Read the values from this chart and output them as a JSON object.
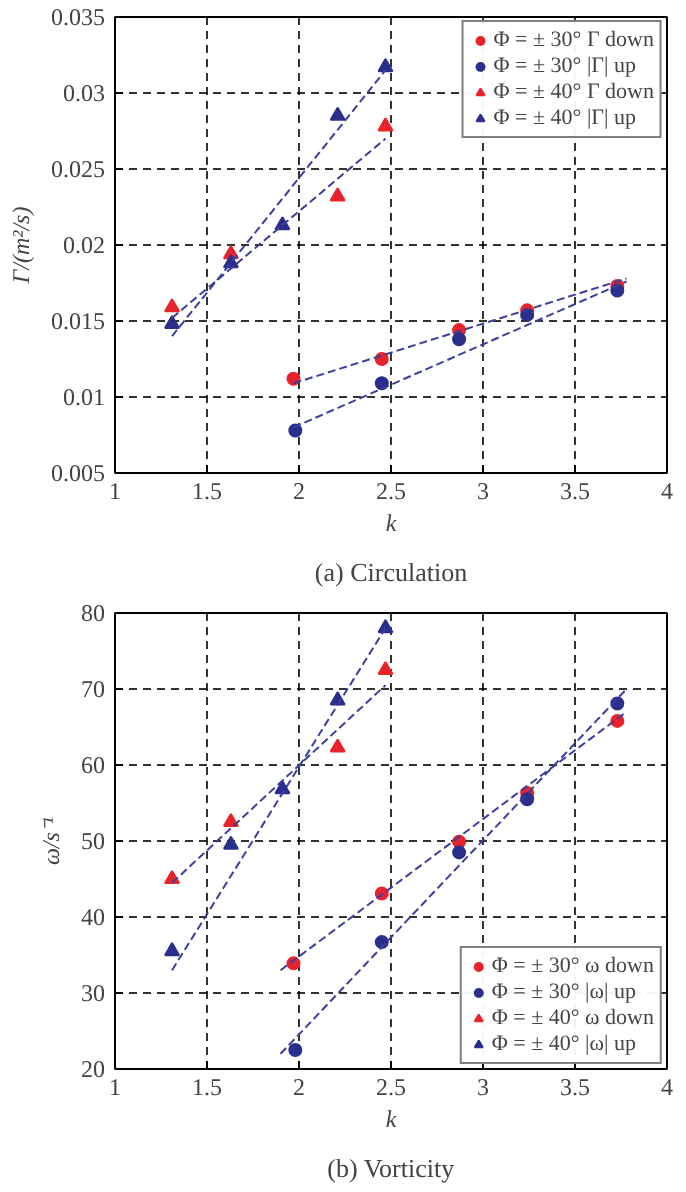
{
  "chart_data": [
    {
      "type": "scatter",
      "xlabel": "k",
      "ylabel": "Γ/(m²/s)",
      "annotations": [
        "(a) Circulation"
      ],
      "xlim": [
        1,
        4
      ],
      "xticks": [
        1,
        1.5,
        2,
        2.5,
        3,
        3.5,
        4
      ],
      "ylim": [
        0.005,
        0.035
      ],
      "yticks": [
        0.005,
        0.01,
        0.015,
        0.02,
        0.025,
        0.03,
        0.035
      ],
      "grid": true,
      "legend": "top right",
      "series": [
        {
          "name": "Φ = ± 30° Γ down",
          "color": "#e8232b",
          "marker": "circle",
          "x": [
            1.97,
            2.45,
            2.87,
            3.24,
            3.73
          ],
          "values": [
            0.0112,
            0.0125,
            0.0144,
            0.0157,
            0.0173
          ]
        },
        {
          "name": "Φ = ± 30° |Γ| up",
          "color": "#2a2f8c",
          "marker": "circle",
          "x": [
            1.98,
            2.45,
            2.87,
            3.24,
            3.73
          ],
          "values": [
            0.0078,
            0.0109,
            0.0138,
            0.0154,
            0.017
          ]
        },
        {
          "name": "Φ = ± 40° Γ down",
          "color": "#e8232b",
          "marker": "triangle",
          "x": [
            1.31,
            1.63,
            2.21,
            2.47
          ],
          "values": [
            0.0159,
            0.0194,
            0.0232,
            0.0278
          ]
        },
        {
          "name": "Φ = ± 40° |Γ| up",
          "color": "#2a2f8c",
          "marker": "triangle",
          "x": [
            1.31,
            1.63,
            1.91,
            2.21,
            2.47
          ],
          "values": [
            0.0148,
            0.0188,
            0.0213,
            0.0285,
            0.0317
          ]
        },
        {
          "type": "line",
          "color": "#3b3f9a",
          "line_style": "dashed",
          "x": [
            1.31,
            2.47
          ],
          "values": [
            0.0152,
            0.027
          ]
        },
        {
          "type": "line",
          "color": "#3b3f9a",
          "line_style": "dashed",
          "x": [
            1.31,
            2.47
          ],
          "values": [
            0.014,
            0.0315
          ]
        },
        {
          "type": "line",
          "color": "#3b3f9a",
          "line_style": "dashed",
          "x": [
            1.97,
            3.78
          ],
          "values": [
            0.0109,
            0.0178
          ]
        },
        {
          "type": "line",
          "color": "#3b3f9a",
          "line_style": "dashed",
          "x": [
            1.97,
            3.78
          ],
          "values": [
            0.008,
            0.0176
          ]
        }
      ]
    },
    {
      "type": "scatter",
      "xlabel": "k",
      "ylabel": "ω/s⁻¹",
      "annotations": [
        "(b) Vorticity"
      ],
      "xlim": [
        1,
        4
      ],
      "xticks": [
        1,
        1.5,
        2,
        2.5,
        3,
        3.5,
        4
      ],
      "ylim": [
        20,
        80
      ],
      "yticks": [
        20,
        30,
        40,
        50,
        60,
        70,
        80
      ],
      "grid": true,
      "legend": "bottom right",
      "series": [
        {
          "name": "Φ = ± 30° ω down",
          "color": "#e8232b",
          "marker": "circle",
          "x": [
            1.97,
            2.45,
            2.87,
            3.24,
            3.73
          ],
          "values": [
            33.9,
            43.1,
            49.9,
            56.3,
            65.8
          ]
        },
        {
          "name": "Φ = ± 30° |ω| up",
          "color": "#2a2f8c",
          "marker": "circle",
          "x": [
            1.98,
            2.45,
            2.87,
            3.24,
            3.73
          ],
          "values": [
            22.5,
            36.7,
            48.5,
            55.5,
            68.1
          ]
        },
        {
          "name": "Φ = ± 40° ω down",
          "color": "#e8232b",
          "marker": "triangle",
          "x": [
            1.31,
            1.63,
            2.21,
            2.47
          ],
          "values": [
            45,
            52.5,
            62.3,
            72.5
          ]
        },
        {
          "name": "Φ = ± 40° |ω| up",
          "color": "#2a2f8c",
          "marker": "triangle",
          "x": [
            1.31,
            1.63,
            1.91,
            2.21,
            2.47
          ],
          "values": [
            35.5,
            49.5,
            56.8,
            68.5,
            78
          ]
        },
        {
          "type": "line",
          "color": "#3b3f9a",
          "line_style": "dashed",
          "x": [
            1.31,
            2.47
          ],
          "values": [
            44.5,
            70.5
          ]
        },
        {
          "type": "line",
          "color": "#3b3f9a",
          "line_style": "dashed",
          "x": [
            1.31,
            2.47
          ],
          "values": [
            33,
            78
          ]
        },
        {
          "type": "line",
          "color": "#3b3f9a",
          "line_style": "dashed",
          "x": [
            1.9,
            3.78
          ],
          "values": [
            33,
            67
          ]
        },
        {
          "type": "line",
          "color": "#3b3f9a",
          "line_style": "dashed",
          "x": [
            1.9,
            3.78
          ],
          "values": [
            22,
            70
          ]
        }
      ]
    }
  ]
}
